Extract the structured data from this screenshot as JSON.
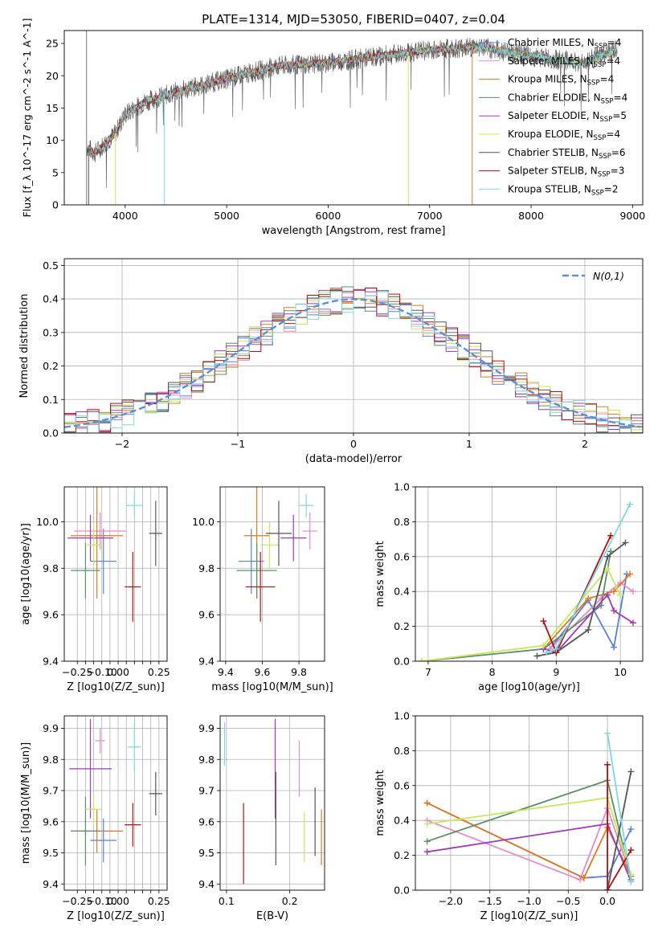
{
  "colors": {
    "Chabrier MILES": "#5b7fd6",
    "Salpeter MILES": "#e58bc9",
    "Kroupa MILES": "#e07a1f",
    "Chabrier ELODIE": "#5a8f6a",
    "Salpeter ELODIE": "#a03ab8",
    "Kroupa ELODIE": "#c8e85a",
    "Chabrier STELIB": "#555555",
    "Salpeter STELIB": "#b01010",
    "Kroupa STELIB": "#7fd8de"
  },
  "chart_data": [
    {
      "id": "spectrum",
      "type": "line",
      "title": "PLATE=1314, MJD=53050, FIBERID=0407, z=0.04",
      "xlabel": "wavelength [Angstrom, rest frame]",
      "ylabel": "Flux [f_λ 10^-17 erg cm^-2 s^-1 A^-1]",
      "xlim": [
        3400,
        9100
      ],
      "ylim": [
        0,
        27
      ],
      "xticks": [
        4000,
        5000,
        6000,
        7000,
        8000,
        9000
      ],
      "yticks": [
        0,
        5,
        10,
        15,
        20,
        25
      ],
      "legend": [
        "Chabrier MILES, N_SSP=4",
        "Salpeter MILES, N_SSP=4",
        "Kroupa MILES, N_SSP=4",
        "Chabrier ELODIE, N_SSP=4",
        "Salpeter ELODIE, N_SSP=5",
        "Kroupa ELODIE, N_SSP=4",
        "Chabrier STELIB, N_SSP=6",
        "Salpeter STELIB, N_SSP=3",
        "Kroupa STELIB, N_SSP=2"
      ],
      "legend_placement": "right",
      "continuum": {
        "x": [
          3620,
          3700,
          3900,
          4000,
          4200,
          4500,
          5000,
          5500,
          6000,
          6500,
          7000,
          7500,
          8000,
          8500,
          8850
        ],
        "y": [
          9,
          8,
          11,
          14,
          16,
          17.5,
          19.5,
          21.5,
          22,
          23,
          24,
          24.5,
          23,
          22,
          24
        ]
      }
    },
    {
      "id": "residuals",
      "type": "histogram",
      "xlabel": "(data-model)/error",
      "ylabel": "Normed distribution",
      "xlim": [
        -2.5,
        2.5
      ],
      "ylim": [
        0,
        0.52
      ],
      "xticks": [
        -2,
        -1,
        0,
        1,
        2
      ],
      "yticks": [
        0.0,
        0.1,
        0.2,
        0.3,
        0.4,
        0.5
      ],
      "legend": [
        "N(0,1)"
      ],
      "legend_placement": "top-right",
      "grid": true
    },
    {
      "id": "age-vs-Z",
      "type": "errorbar",
      "xlabel": "Z [log10(Z/Z_sun)]",
      "ylabel": "age [log10(age/yr)]",
      "xlim": [
        -0.33,
        0.3
      ],
      "ylim": [
        9.4,
        10.15
      ],
      "xticks": [
        -0.25,
        -0.2,
        -0.15,
        -0.1,
        -0.05,
        0.0,
        0.05,
        0.1,
        0.15,
        0.2,
        0.25
      ],
      "xticklabels": [
        "-0.25",
        "",
        "",
        "-0.10",
        "",
        "0.00",
        "",
        "",
        "",
        "",
        "0.25"
      ],
      "yticks": [
        9.4,
        9.6,
        9.8,
        10.0
      ],
      "points": [
        {
          "m": "Chabrier MILES",
          "x": -0.09,
          "y": 9.83,
          "xe": 0.08,
          "ye": 0.14
        },
        {
          "m": "Salpeter MILES",
          "x": -0.11,
          "y": 9.96,
          "xe": 0.16,
          "ye": 0.08
        },
        {
          "m": "Kroupa MILES",
          "x": -0.13,
          "y": 9.94,
          "xe": 0.16,
          "ye": 0.27
        },
        {
          "m": "Chabrier ELODIE",
          "x": -0.2,
          "y": 9.79,
          "xe": 0.09,
          "ye": 0.12
        },
        {
          "m": "Salpeter ELODIE",
          "x": -0.17,
          "y": 9.93,
          "xe": 0.14,
          "ye": 0.1
        },
        {
          "m": "Kroupa ELODIE",
          "x": -0.15,
          "y": 9.9,
          "xe": 0.05,
          "ye": 0.1
        },
        {
          "m": "Chabrier STELIB",
          "x": 0.23,
          "y": 9.95,
          "xe": 0.04,
          "ye": 0.14
        },
        {
          "m": "Salpeter STELIB",
          "x": 0.09,
          "y": 9.72,
          "xe": 0.05,
          "ye": 0.15
        },
        {
          "m": "Kroupa STELIB",
          "x": 0.1,
          "y": 10.07,
          "xe": 0.05,
          "ye": 0.05
        }
      ]
    },
    {
      "id": "age-vs-mass",
      "type": "errorbar",
      "xlabel": "mass [log10(M/M_sun)]",
      "xlim": [
        9.37,
        9.94
      ],
      "ylim": [
        9.4,
        10.15
      ],
      "xticks": [
        9.4,
        9.6,
        9.8
      ],
      "yticks": [
        9.4,
        9.6,
        9.8,
        10.0
      ],
      "points": [
        {
          "m": "Chabrier MILES",
          "x": 9.54,
          "y": 9.83,
          "xe": 0.07,
          "ye": 0.14
        },
        {
          "m": "Salpeter MILES",
          "x": 9.86,
          "y": 9.96,
          "xe": 0.04,
          "ye": 0.08
        },
        {
          "m": "Kroupa MILES",
          "x": 9.57,
          "y": 9.94,
          "xe": 0.07,
          "ye": 0.27
        },
        {
          "m": "Chabrier ELODIE",
          "x": 9.57,
          "y": 9.79,
          "xe": 0.11,
          "ye": 0.12
        },
        {
          "m": "Salpeter ELODIE",
          "x": 9.77,
          "y": 9.93,
          "xe": 0.07,
          "ye": 0.1
        },
        {
          "m": "Kroupa ELODIE",
          "x": 9.64,
          "y": 9.9,
          "xe": 0.05,
          "ye": 0.1
        },
        {
          "m": "Chabrier STELIB",
          "x": 9.69,
          "y": 9.95,
          "xe": 0.07,
          "ye": 0.14
        },
        {
          "m": "Salpeter STELIB",
          "x": 9.59,
          "y": 9.72,
          "xe": 0.08,
          "ye": 0.15
        },
        {
          "m": "Kroupa STELIB",
          "x": 9.84,
          "y": 10.07,
          "xe": 0.04,
          "ye": 0.05
        }
      ]
    },
    {
      "id": "weight-vs-age",
      "type": "line",
      "xlabel": "age [log10(age/yr)]",
      "ylabel": "mass weight",
      "xlim": [
        6.8,
        10.35
      ],
      "ylim": [
        0,
        1.0
      ],
      "xticks": [
        7,
        8,
        9,
        10
      ],
      "yticks": [
        0.0,
        0.2,
        0.4,
        0.6,
        0.8,
        1.0
      ],
      "grid": true,
      "series": [
        {
          "m": "Chabrier MILES",
          "x": [
            8.9,
            9.5,
            9.9,
            10.1
          ],
          "y": [
            0.07,
            0.35,
            0.08,
            0.5
          ]
        },
        {
          "m": "Salpeter MILES",
          "x": [
            8.9,
            9.7,
            10.0,
            10.2
          ],
          "y": [
            0.07,
            0.36,
            0.45,
            0.4
          ]
        },
        {
          "m": "Kroupa MILES",
          "x": [
            8.8,
            9.5,
            9.9,
            10.15
          ],
          "y": [
            0.07,
            0.36,
            0.4,
            0.5
          ]
        },
        {
          "m": "Chabrier ELODIE",
          "x": [
            6.9,
            8.8,
            9.7,
            9.85
          ],
          "y": [
            0.0,
            0.07,
            0.32,
            0.63
          ]
        },
        {
          "m": "Salpeter ELODIE",
          "x": [
            8.8,
            9.0,
            9.8,
            9.9,
            10.2
          ],
          "y": [
            0.07,
            0.05,
            0.38,
            0.29,
            0.22
          ]
        },
        {
          "m": "Kroupa ELODIE",
          "x": [
            6.9,
            8.8,
            9.8,
            10.0
          ],
          "y": [
            0.0,
            0.09,
            0.53,
            0.38
          ]
        },
        {
          "m": "Chabrier STELIB",
          "x": [
            8.7,
            9.0,
            9.5,
            9.8,
            10.08
          ],
          "y": [
            0.03,
            0.05,
            0.18,
            0.6,
            0.68
          ]
        },
        {
          "m": "Salpeter STELIB",
          "x": [
            8.8,
            9.0,
            9.85
          ],
          "y": [
            0.23,
            0.05,
            0.72
          ]
        },
        {
          "m": "Kroupa STELIB",
          "x": [
            8.85,
            9.0,
            10.15
          ],
          "y": [
            0.05,
            0.07,
            0.9
          ]
        }
      ]
    },
    {
      "id": "mass-vs-Z",
      "type": "errorbar",
      "xlabel": "Z [log10(Z/Z_sun)]",
      "ylabel": "mass [log10(M/M_sun)]",
      "xlim": [
        -0.33,
        0.3
      ],
      "ylim": [
        9.38,
        9.94
      ],
      "xticks": [
        -0.25,
        -0.2,
        -0.15,
        -0.1,
        -0.05,
        0.0,
        0.05,
        0.1,
        0.15,
        0.2,
        0.25
      ],
      "xticklabels": [
        "-0.25",
        "",
        "",
        "-0.10",
        "",
        "0.00",
        "",
        "",
        "",
        "",
        "0.25"
      ],
      "yticks": [
        9.4,
        9.5,
        9.6,
        9.7,
        9.8,
        9.9
      ],
      "points": [
        {
          "m": "Chabrier MILES",
          "x": -0.09,
          "y": 9.54,
          "xe": 0.08,
          "ye": 0.07
        },
        {
          "m": "Salpeter MILES",
          "x": -0.11,
          "y": 9.86,
          "xe": 0.03,
          "ye": 0.04
        },
        {
          "m": "Kroupa MILES",
          "x": -0.13,
          "y": 9.57,
          "xe": 0.16,
          "ye": 0.07
        },
        {
          "m": "Chabrier ELODIE",
          "x": -0.2,
          "y": 9.57,
          "xe": 0.09,
          "ye": 0.11
        },
        {
          "m": "Salpeter ELODIE",
          "x": -0.17,
          "y": 9.77,
          "xe": 0.13,
          "ye": 0.16
        },
        {
          "m": "Kroupa ELODIE",
          "x": -0.15,
          "y": 9.64,
          "xe": 0.05,
          "ye": 0.05
        },
        {
          "m": "Chabrier STELIB",
          "x": 0.23,
          "y": 9.69,
          "xe": 0.04,
          "ye": 0.07
        },
        {
          "m": "Salpeter STELIB",
          "x": 0.09,
          "y": 9.59,
          "xe": 0.05,
          "ye": 0.07
        },
        {
          "m": "Kroupa STELIB",
          "x": 0.1,
          "y": 9.84,
          "xe": 0.04,
          "ye": 0.08
        }
      ]
    },
    {
      "id": "mass-vs-ebv",
      "type": "errorbar",
      "xlabel": "E(B-V)",
      "xlim": [
        0.09,
        0.255
      ],
      "ylim": [
        9.38,
        9.94
      ],
      "xticks": [
        0.1,
        0.2
      ],
      "yticks": [
        9.4,
        9.5,
        9.6,
        9.7,
        9.8,
        9.9
      ],
      "points": [
        {
          "m": "Kroupa STELIB",
          "x": 0.097,
          "y": 9.85,
          "xe": 0,
          "ye": 0.07
        },
        {
          "m": "Salpeter STELIB",
          "x": 0.127,
          "y": 9.53,
          "xe": 0,
          "ye": 0.13
        },
        {
          "m": "Salpeter ELODIE",
          "x": 0.177,
          "y": 9.77,
          "xe": 0,
          "ye": 0.16
        },
        {
          "m": "Chabrier STELIB",
          "x": 0.178,
          "y": 9.61,
          "xe": 0,
          "ye": 0.15
        },
        {
          "m": "Salpeter MILES",
          "x": 0.215,
          "y": 9.77,
          "xe": 0,
          "ye": 0.09
        },
        {
          "m": "Kroupa ELODIE",
          "x": 0.223,
          "y": 9.55,
          "xe": 0,
          "ye": 0.08
        },
        {
          "m": "Chabrier STELIB",
          "x": 0.24,
          "y": 9.6,
          "xe": 0,
          "ye": 0.11
        },
        {
          "m": "Kroupa MILES",
          "x": 0.25,
          "y": 9.55,
          "xe": 0,
          "ye": 0.09
        }
      ]
    },
    {
      "id": "weight-vs-Z",
      "type": "line",
      "xlabel": "Z [log10(Z/Z_sun)]",
      "ylabel": "mass weight",
      "xlim": [
        -2.45,
        0.45
      ],
      "ylim": [
        0,
        1.0
      ],
      "xticks": [
        -2.0,
        -1.5,
        -1.0,
        -0.5,
        0.0
      ],
      "yticks": [
        0.0,
        0.2,
        0.4,
        0.6,
        0.8,
        1.0
      ],
      "grid": true,
      "series": [
        {
          "m": "Chabrier MILES",
          "x": [
            -2.3,
            -0.3,
            0.0,
            0.3
          ],
          "y": [
            0.5,
            0.07,
            0.08,
            0.35
          ]
        },
        {
          "m": "Salpeter MILES",
          "x": [
            -2.3,
            -0.35,
            0.0,
            0.3
          ],
          "y": [
            0.4,
            0.06,
            0.47,
            0.08
          ]
        },
        {
          "m": "Kroupa MILES",
          "x": [
            -2.3,
            -0.3,
            0.0,
            0.3
          ],
          "y": [
            0.5,
            0.07,
            0.36,
            0.08
          ]
        },
        {
          "m": "Chabrier ELODIE",
          "x": [
            -2.3,
            0.0,
            0.3
          ],
          "y": [
            0.28,
            0.63,
            0.06
          ]
        },
        {
          "m": "Salpeter ELODIE",
          "x": [
            -2.3,
            0.0,
            0.3
          ],
          "y": [
            0.22,
            0.38,
            0.05
          ]
        },
        {
          "m": "Kroupa ELODIE",
          "x": [
            -2.3,
            0.0,
            0.3
          ],
          "y": [
            0.38,
            0.53,
            0.09
          ]
        },
        {
          "m": "Chabrier STELIB",
          "x": [
            0.0,
            0.3
          ],
          "y": [
            0.0,
            0.68
          ]
        },
        {
          "m": "Salpeter STELIB",
          "x": [
            0.0,
            0.0,
            0.3
          ],
          "y": [
            0.72,
            0.0,
            0.23
          ]
        },
        {
          "m": "Kroupa STELIB",
          "x": [
            0.0,
            0.3
          ],
          "y": [
            0.9,
            0.05
          ]
        }
      ]
    }
  ]
}
